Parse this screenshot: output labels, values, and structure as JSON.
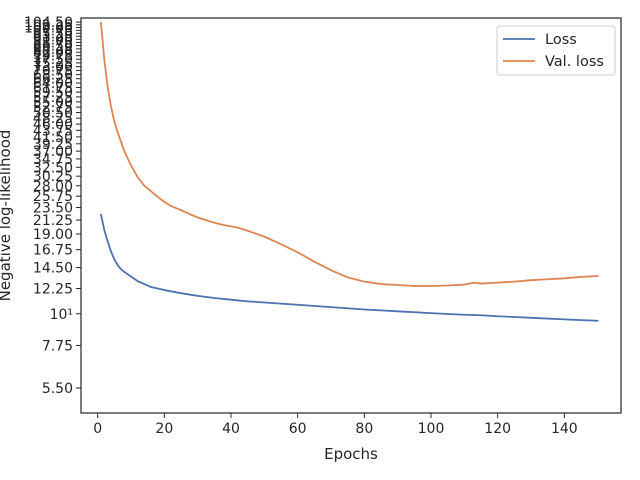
{
  "chart_data": {
    "type": "line",
    "title": "",
    "xlabel": "Epochs",
    "ylabel": "Negative log-likelihood",
    "xscale": "linear",
    "yscale": "log",
    "xlim": [
      -5,
      157
    ],
    "ylim": [
      4.5,
      108
    ],
    "xticks": [
      0,
      20,
      40,
      60,
      80,
      100,
      120,
      140
    ],
    "yticks": [
      {
        "value": 5.5,
        "label": "5.50"
      },
      {
        "value": 7.75,
        "label": "7.75"
      },
      {
        "value": 10,
        "label": "10¹"
      },
      {
        "value": 12.25,
        "label": "12.25"
      },
      {
        "value": 14.5,
        "label": "14.50"
      },
      {
        "value": 16.75,
        "label": "16.75"
      },
      {
        "value": 19.0,
        "label": "19.00"
      },
      {
        "value": 21.25,
        "label": "21.25"
      },
      {
        "value": 23.5,
        "label": "23.50"
      },
      {
        "value": 25.75,
        "label": "25.75"
      },
      {
        "value": 28.0,
        "label": "28.00"
      },
      {
        "value": 30.25,
        "label": "30.25"
      },
      {
        "value": 32.5,
        "label": "32.50"
      },
      {
        "value": 34.75,
        "label": "34.75"
      },
      {
        "value": 37.0,
        "label": "37.00"
      },
      {
        "value": 39.25,
        "label": "39.25"
      },
      {
        "value": 41.5,
        "label": "41.50"
      },
      {
        "value": 43.75,
        "label": "43.75"
      },
      {
        "value": 46.0,
        "label": "46.00"
      },
      {
        "value": 48.25,
        "label": "48.25"
      },
      {
        "value": 50.5,
        "label": "50.50"
      },
      {
        "value": 52.75,
        "label": "52.75"
      },
      {
        "value": 55.0,
        "label": "55.00"
      },
      {
        "value": 57.25,
        "label": "57.25"
      },
      {
        "value": 59.5,
        "label": "59.50"
      },
      {
        "value": 61.75,
        "label": "61.75"
      },
      {
        "value": 64.0,
        "label": "64.00"
      },
      {
        "value": 66.25,
        "label": "66.25"
      },
      {
        "value": 68.5,
        "label": "68.50"
      },
      {
        "value": 70.75,
        "label": "70.75"
      },
      {
        "value": 73.0,
        "label": "73.00"
      },
      {
        "value": 75.25,
        "label": "75.25"
      },
      {
        "value": 77.5,
        "label": "77.50"
      },
      {
        "value": 79.75,
        "label": "79.75"
      },
      {
        "value": 82.0,
        "label": "82.00"
      },
      {
        "value": 84.25,
        "label": "84.25"
      },
      {
        "value": 86.5,
        "label": "86.50"
      },
      {
        "value": 88.75,
        "label": "88.75"
      },
      {
        "value": 91.0,
        "label": "91.00"
      },
      {
        "value": 93.25,
        "label": "93.25"
      },
      {
        "value": 95.5,
        "label": "95.50"
      },
      {
        "value": 97.75,
        "label": "97.75"
      },
      {
        "value": 100.0,
        "label": "100.00"
      },
      {
        "value": 102.25,
        "label": "102.25"
      },
      {
        "value": 104.5,
        "label": "104.50"
      }
    ],
    "legend_position": "top-right",
    "grid": false,
    "series": [
      {
        "name": "Loss",
        "color": "#4c72b0",
        "x": [
          1,
          2,
          3,
          4,
          5,
          6,
          7,
          8,
          10,
          12,
          14,
          16,
          18,
          20,
          25,
          30,
          35,
          40,
          45,
          50,
          55,
          60,
          70,
          80,
          90,
          100,
          105,
          110,
          113,
          115,
          120,
          125,
          130,
          135,
          140,
          145,
          150
        ],
        "y": [
          22.2,
          19.6,
          17.9,
          16.5,
          15.5,
          14.8,
          14.3,
          14.0,
          13.5,
          13.0,
          12.7,
          12.4,
          12.25,
          12.1,
          11.8,
          11.55,
          11.35,
          11.2,
          11.05,
          10.95,
          10.85,
          10.75,
          10.55,
          10.35,
          10.2,
          10.05,
          9.98,
          9.92,
          9.9,
          9.88,
          9.8,
          9.74,
          9.68,
          9.62,
          9.56,
          9.5,
          9.45
        ]
      },
      {
        "name": "Val. loss",
        "color": "#dd8452",
        "x": [
          1,
          2,
          3,
          4,
          5,
          6,
          8,
          10,
          12,
          14,
          16,
          18,
          20,
          22,
          25,
          28,
          30,
          35,
          38,
          42,
          45,
          50,
          55,
          60,
          65,
          70,
          75,
          80,
          85,
          90,
          95,
          100,
          105,
          110,
          113,
          115,
          120,
          125,
          130,
          135,
          140,
          145,
          150
        ],
        "y": [
          104.0,
          77.0,
          62.0,
          53.0,
          47.0,
          43.0,
          37.0,
          33.0,
          30.0,
          28.0,
          26.8,
          25.6,
          24.6,
          23.8,
          23.0,
          22.2,
          21.7,
          20.8,
          20.4,
          20.0,
          19.5,
          18.6,
          17.5,
          16.4,
          15.2,
          14.2,
          13.4,
          12.95,
          12.7,
          12.6,
          12.5,
          12.5,
          12.55,
          12.65,
          12.85,
          12.75,
          12.85,
          12.95,
          13.1,
          13.2,
          13.3,
          13.45,
          13.55
        ]
      }
    ]
  }
}
